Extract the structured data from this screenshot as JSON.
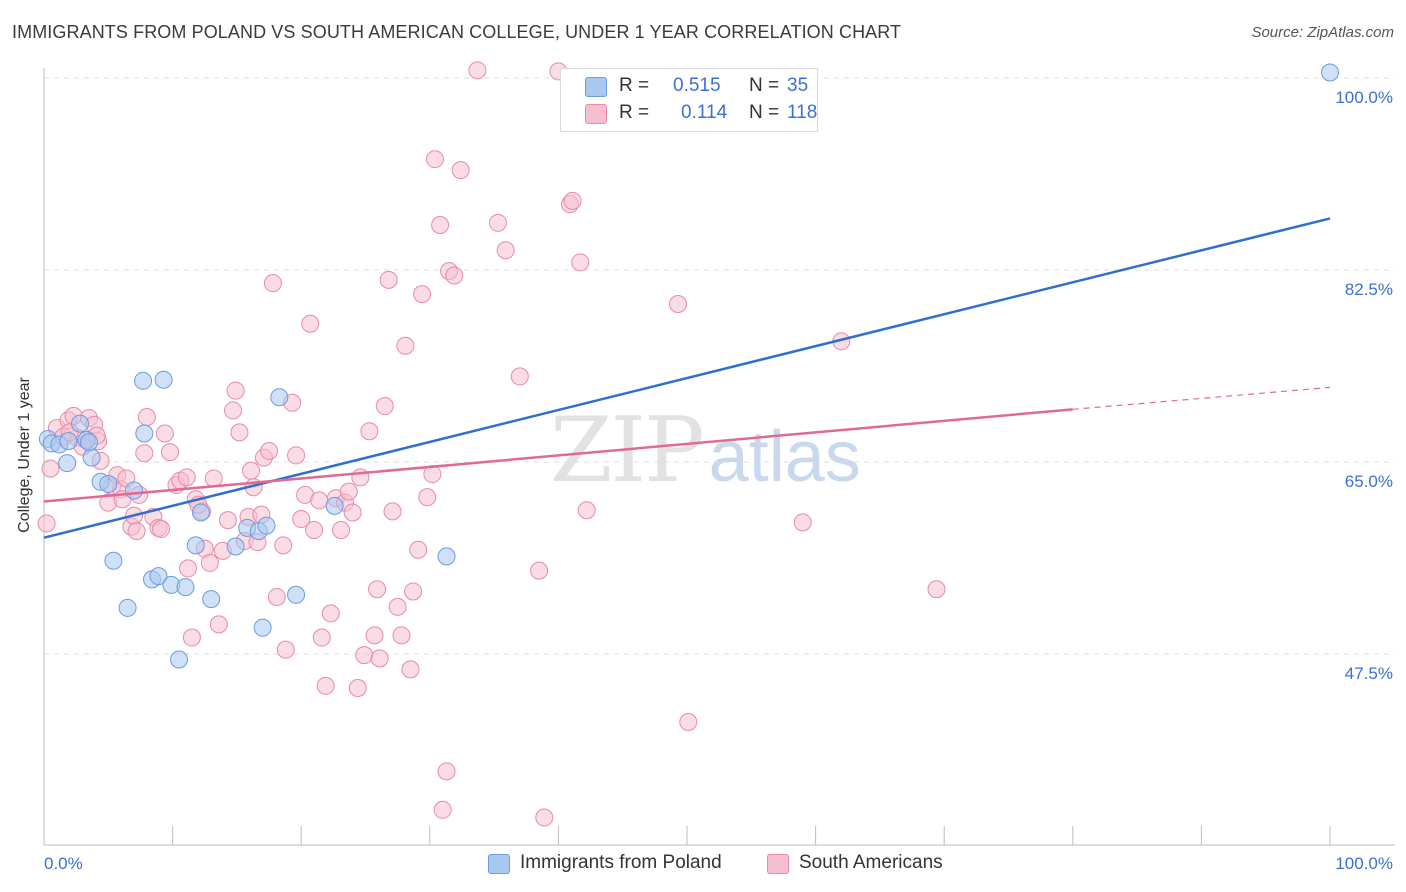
{
  "title": "IMMIGRANTS FROM POLAND VS SOUTH AMERICAN COLLEGE, UNDER 1 YEAR CORRELATION CHART",
  "source": "Source: ZipAtlas.com",
  "watermark": {
    "zip": "ZIP",
    "atlas": "atlas"
  },
  "legend": {
    "r_label": "R =",
    "n_label": "N =",
    "series1": {
      "r": "0.515",
      "n": "35"
    },
    "series2": {
      "r": "0.114",
      "n": "118"
    }
  },
  "colors": {
    "blue_fill": "#a9c8f0",
    "blue_stroke": "#6b9be0",
    "blue_line": "#2e6fcf",
    "pink_fill": "#f6bfd0",
    "pink_stroke": "#e98aa8",
    "pink_line": "#e06a95",
    "grid": "#dcdcdc",
    "tick_label": "#3a6fd8"
  },
  "chart_data": {
    "type": "scatter",
    "title": "IMMIGRANTS FROM POLAND VS SOUTH AMERICAN COLLEGE, UNDER 1 YEAR CORRELATION CHART",
    "xlabel": "",
    "ylabel": "College, Under 1 year",
    "xlim": [
      0,
      100
    ],
    "ylim": [
      32,
      102
    ],
    "x_tick_labels": [
      "0.0%",
      "100.0%"
    ],
    "y_ticks": [
      47.5,
      65.0,
      82.5,
      100.0
    ],
    "y_tick_labels": [
      "47.5%",
      "65.0%",
      "82.5%",
      "100.0%"
    ],
    "grid": true,
    "series": [
      {
        "name": "Immigrants from Poland",
        "r": 0.515,
        "n": 35,
        "trend": {
          "x0": 0,
          "y0": 58.1,
          "x1": 100,
          "y1": 87.2
        },
        "points": [
          [
            0.3,
            67.1
          ],
          [
            0.6,
            66.7
          ],
          [
            1.2,
            66.6
          ],
          [
            1.8,
            64.9
          ],
          [
            2.8,
            68.5
          ],
          [
            3.3,
            67.0
          ],
          [
            3.7,
            65.4
          ],
          [
            4.4,
            63.2
          ],
          [
            5.0,
            63.0
          ],
          [
            7.0,
            62.4
          ],
          [
            5.4,
            56.0
          ],
          [
            6.5,
            51.7
          ],
          [
            7.7,
            72.4
          ],
          [
            9.3,
            72.5
          ],
          [
            7.8,
            67.6
          ],
          [
            8.4,
            54.3
          ],
          [
            8.9,
            54.6
          ],
          [
            9.9,
            53.8
          ],
          [
            10.5,
            47.0
          ],
          [
            11.0,
            53.6
          ],
          [
            11.8,
            57.4
          ],
          [
            12.2,
            60.4
          ],
          [
            13.0,
            52.5
          ],
          [
            14.9,
            57.3
          ],
          [
            15.8,
            59.0
          ],
          [
            16.7,
            58.7
          ],
          [
            17.3,
            59.2
          ],
          [
            17.0,
            49.9
          ],
          [
            18.3,
            70.9
          ],
          [
            19.6,
            52.9
          ],
          [
            22.6,
            61.0
          ],
          [
            31.3,
            56.4
          ],
          [
            100.0,
            100.5
          ],
          [
            1.9,
            66.9
          ],
          [
            3.5,
            66.8
          ]
        ]
      },
      {
        "name": "South Americans",
        "r": 0.114,
        "n": 118,
        "trend": {
          "x0": 0,
          "y0": 61.4,
          "x1": 80,
          "y1": 69.8
        },
        "trend_dashed": {
          "x0": 80,
          "y0": 69.8,
          "x1": 100,
          "y1": 71.8
        },
        "points": [
          [
            0.2,
            59.4
          ],
          [
            0.5,
            64.4
          ],
          [
            1.0,
            68.1
          ],
          [
            1.5,
            67.3
          ],
          [
            1.9,
            68.8
          ],
          [
            2.3,
            69.2
          ],
          [
            2.6,
            67.2
          ],
          [
            3.0,
            66.4
          ],
          [
            3.5,
            69.0
          ],
          [
            3.9,
            68.4
          ],
          [
            4.2,
            66.9
          ],
          [
            4.4,
            65.1
          ],
          [
            5.0,
            61.3
          ],
          [
            5.3,
            62.8
          ],
          [
            5.7,
            63.8
          ],
          [
            6.0,
            62.5
          ],
          [
            6.4,
            63.5
          ],
          [
            6.8,
            59.1
          ],
          [
            7.0,
            60.1
          ],
          [
            7.4,
            62.0
          ],
          [
            7.8,
            65.8
          ],
          [
            8.0,
            69.1
          ],
          [
            8.5,
            60.0
          ],
          [
            8.9,
            59.0
          ],
          [
            9.4,
            67.6
          ],
          [
            9.8,
            65.9
          ],
          [
            10.3,
            62.9
          ],
          [
            10.6,
            63.3
          ],
          [
            11.1,
            63.6
          ],
          [
            11.2,
            55.3
          ],
          [
            11.5,
            49.0
          ],
          [
            11.8,
            61.6
          ],
          [
            12.3,
            60.5
          ],
          [
            12.5,
            57.1
          ],
          [
            12.9,
            55.8
          ],
          [
            13.2,
            63.5
          ],
          [
            13.6,
            50.2
          ],
          [
            13.9,
            56.9
          ],
          [
            14.3,
            59.7
          ],
          [
            14.7,
            69.7
          ],
          [
            14.9,
            71.5
          ],
          [
            15.2,
            67.7
          ],
          [
            15.6,
            57.8
          ],
          [
            15.9,
            60.0
          ],
          [
            16.1,
            64.2
          ],
          [
            16.3,
            62.7
          ],
          [
            16.6,
            57.7
          ],
          [
            16.9,
            60.2
          ],
          [
            17.1,
            65.4
          ],
          [
            17.5,
            66.0
          ],
          [
            17.8,
            81.3
          ],
          [
            18.1,
            52.7
          ],
          [
            18.6,
            57.4
          ],
          [
            18.8,
            47.9
          ],
          [
            19.3,
            70.4
          ],
          [
            19.6,
            65.6
          ],
          [
            20.0,
            59.8
          ],
          [
            20.3,
            62.0
          ],
          [
            20.7,
            77.6
          ],
          [
            21.0,
            58.8
          ],
          [
            21.4,
            61.5
          ],
          [
            21.6,
            49.0
          ],
          [
            21.9,
            44.6
          ],
          [
            22.3,
            51.2
          ],
          [
            22.7,
            61.7
          ],
          [
            23.1,
            58.8
          ],
          [
            23.4,
            61.3
          ],
          [
            23.7,
            62.3
          ],
          [
            24.0,
            60.4
          ],
          [
            24.4,
            44.4
          ],
          [
            24.6,
            63.6
          ],
          [
            24.9,
            47.4
          ],
          [
            25.3,
            67.8
          ],
          [
            25.7,
            49.2
          ],
          [
            25.9,
            53.4
          ],
          [
            26.1,
            47.1
          ],
          [
            26.5,
            70.1
          ],
          [
            26.8,
            81.6
          ],
          [
            27.1,
            60.5
          ],
          [
            27.5,
            51.8
          ],
          [
            27.8,
            49.2
          ],
          [
            28.1,
            75.6
          ],
          [
            28.5,
            46.1
          ],
          [
            28.7,
            53.2
          ],
          [
            29.1,
            57.0
          ],
          [
            29.4,
            80.3
          ],
          [
            29.8,
            61.8
          ],
          [
            30.2,
            63.9
          ],
          [
            30.4,
            92.6
          ],
          [
            30.8,
            86.6
          ],
          [
            31.3,
            36.8
          ],
          [
            31.5,
            82.4
          ],
          [
            31.9,
            82.0
          ],
          [
            32.4,
            91.6
          ],
          [
            33.7,
            100.7
          ],
          [
            35.3,
            86.8
          ],
          [
            35.9,
            84.3
          ],
          [
            37.0,
            72.8
          ],
          [
            38.5,
            55.1
          ],
          [
            38.9,
            32.6
          ],
          [
            40.0,
            100.6
          ],
          [
            40.9,
            88.5
          ],
          [
            41.1,
            88.8
          ],
          [
            41.7,
            83.2
          ],
          [
            42.2,
            60.6
          ],
          [
            31.0,
            33.3
          ],
          [
            49.3,
            79.4
          ],
          [
            50.1,
            41.3
          ],
          [
            59.0,
            59.5
          ],
          [
            62.0,
            76.0
          ],
          [
            69.4,
            53.4
          ],
          [
            2.0,
            67.7
          ],
          [
            3.3,
            67.0
          ],
          [
            4.1,
            67.4
          ],
          [
            6.1,
            61.6
          ],
          [
            7.2,
            58.7
          ],
          [
            9.1,
            58.9
          ],
          [
            12.0,
            61.1
          ]
        ]
      }
    ]
  },
  "bottom_legend": {
    "item1": "Immigrants from Poland",
    "item2": "South Americans"
  }
}
